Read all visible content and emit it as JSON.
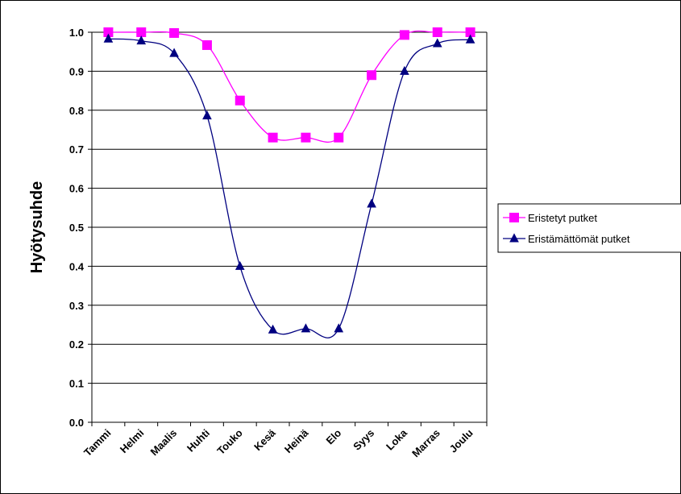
{
  "chart_data": {
    "type": "line",
    "title": "",
    "xlabel": "",
    "ylabel": "Hyötysuhde",
    "categories": [
      "Tammi",
      "Helmi",
      "Maalis",
      "Huhti",
      "Touko",
      "Kesä",
      "Heinä",
      "Elo",
      "Syys",
      "Loka",
      "Marras",
      "Joulu"
    ],
    "ylim": [
      0,
      1.0
    ],
    "yticks": [
      "0.0",
      "0.1",
      "0.2",
      "0.3",
      "0.4",
      "0.5",
      "0.6",
      "0.7",
      "0.8",
      "0.9",
      "1.0"
    ],
    "grid": true,
    "smooth": true,
    "legend_position": "right",
    "series": [
      {
        "name": "Eristetyt putket",
        "color": "#ff00ff",
        "marker": "square",
        "marker_color": "#ff00ff",
        "values": [
          1.0,
          1.0,
          0.998,
          0.967,
          0.825,
          0.73,
          0.73,
          0.73,
          0.89,
          0.993,
          1.0,
          1.0
        ]
      },
      {
        "name": "Eristämättömät putket",
        "color": "#000080",
        "marker": "triangle",
        "marker_color": "#000080",
        "values": [
          0.983,
          0.978,
          0.946,
          0.786,
          0.4,
          0.237,
          0.24,
          0.24,
          0.56,
          0.9,
          0.971,
          0.981
        ]
      }
    ]
  }
}
